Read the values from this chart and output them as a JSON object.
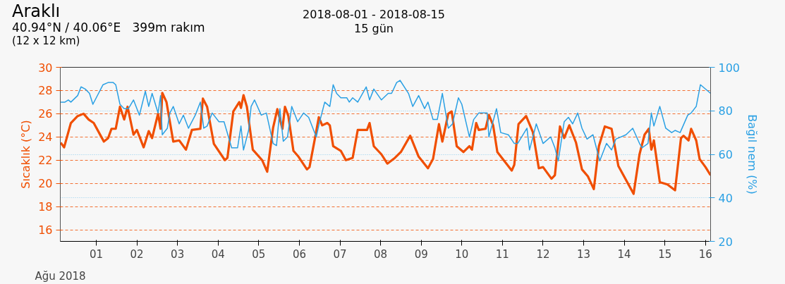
{
  "chart_data": {
    "type": "line",
    "title": "Araklı",
    "subtitle": "40.94°N / 40.06°E   399m rakım",
    "annotations": [
      "(12 x 12 km)",
      "2018-08-01 - 2018-08-15",
      "15 gün"
    ],
    "xlabel": "Ağu 2018",
    "ylabel": "Sıcaklık (°C)",
    "y2label": "Bağıl nem (%)",
    "xlim": [
      "2018-07-31T02:45",
      "2018-08-16T03:00"
    ],
    "xticks": [
      {
        "value": "2018-08-01",
        "label": "01"
      },
      {
        "value": "2018-08-02",
        "label": "02"
      },
      {
        "value": "2018-08-03",
        "label": "03"
      },
      {
        "value": "2018-08-04",
        "label": "04"
      },
      {
        "value": "2018-08-05",
        "label": "05"
      },
      {
        "value": "2018-08-06",
        "label": "06"
      },
      {
        "value": "2018-08-07",
        "label": "07"
      },
      {
        "value": "2018-08-08",
        "label": "08"
      },
      {
        "value": "2018-08-09",
        "label": "09"
      },
      {
        "value": "2018-08-10",
        "label": "10"
      },
      {
        "value": "2018-08-11",
        "label": "11"
      },
      {
        "value": "2018-08-12",
        "label": "12"
      },
      {
        "value": "2018-08-13",
        "label": "13"
      },
      {
        "value": "2018-08-14",
        "label": "14"
      },
      {
        "value": "2018-08-15",
        "label": "15"
      },
      {
        "value": "2018-08-16",
        "label": "16"
      }
    ],
    "ylim": [
      15,
      30
    ],
    "yticks": [
      16,
      18,
      20,
      22,
      24,
      26,
      28,
      30
    ],
    "y2lim": [
      20,
      100
    ],
    "y2ticks": [
      20,
      40,
      60,
      80,
      100
    ],
    "grid": "y",
    "marker": "none",
    "line_style": "solid",
    "series": [
      {
        "color": "#f04e00",
        "axis": "y",
        "x": [
          "2018-07-31T03:00",
          "2018-07-31T05:00",
          "2018-07-31T09:00",
          "2018-07-31T13:00",
          "2018-07-31T16:30",
          "2018-07-31T19:30",
          "2018-07-31T22:30",
          "2018-08-01T04:30",
          "2018-08-01T07:00",
          "2018-08-01T09:00",
          "2018-08-01T11:30",
          "2018-08-01T14:00",
          "2018-08-01T16:30",
          "2018-08-01T18:30",
          "2018-08-01T22:00",
          "2018-08-02T00:00",
          "2018-08-02T04:00",
          "2018-08-02T07:00",
          "2018-08-02T09:00",
          "2018-08-02T12:30",
          "2018-08-02T14:00",
          "2018-08-02T15:00",
          "2018-08-02T17:30",
          "2018-08-02T21:30",
          "2018-08-03T01:00",
          "2018-08-03T05:00",
          "2018-08-03T08:30",
          "2018-08-03T13:30",
          "2018-08-03T15:00",
          "2018-08-03T17:30",
          "2018-08-03T21:30",
          "2018-08-04T04:00",
          "2018-08-04T05:30",
          "2018-08-04T09:00",
          "2018-08-04T12:30",
          "2018-08-04T13:30",
          "2018-08-04T15:00",
          "2018-08-04T17:00",
          "2018-08-04T20:30",
          "2018-08-05T02:00",
          "2018-08-05T05:00",
          "2018-08-05T08:30",
          "2018-08-05T11:00",
          "2018-08-05T14:00",
          "2018-08-05T15:30",
          "2018-08-05T17:30",
          "2018-08-05T20:30",
          "2018-08-05T23:30",
          "2018-08-06T04:30",
          "2018-08-06T06:00",
          "2018-08-06T09:30",
          "2018-08-06T11:30",
          "2018-08-06T13:30",
          "2018-08-06T16:30",
          "2018-08-06T18:00",
          "2018-08-06T20:00",
          "2018-08-07T00:30",
          "2018-08-07T03:30",
          "2018-08-07T07:30",
          "2018-08-07T10:30",
          "2018-08-07T16:00",
          "2018-08-07T17:30",
          "2018-08-07T20:00",
          "2018-08-08T00:30",
          "2018-08-08T04:00",
          "2018-08-08T08:30",
          "2018-08-08T12:00",
          "2018-08-08T17:30",
          "2018-08-08T22:30",
          "2018-08-09T04:00",
          "2018-08-09T07:00",
          "2018-08-09T10:30",
          "2018-08-09T12:30",
          "2018-08-09T16:00",
          "2018-08-09T18:00",
          "2018-08-09T21:00",
          "2018-08-10T01:00",
          "2018-08-10T04:30",
          "2018-08-10T06:00",
          "2018-08-10T08:30",
          "2018-08-10T10:00",
          "2018-08-10T14:00",
          "2018-08-10T16:00",
          "2018-08-10T18:30",
          "2018-08-10T21:00",
          "2018-08-11T05:30",
          "2018-08-11T07:00",
          "2018-08-11T09:30",
          "2018-08-11T14:00",
          "2018-08-11T18:00",
          "2018-08-11T21:30",
          "2018-08-12T00:00",
          "2018-08-12T05:00",
          "2018-08-12T07:00",
          "2018-08-12T10:00",
          "2018-08-12T12:30",
          "2018-08-12T15:30",
          "2018-08-12T19:30",
          "2018-08-12T23:00",
          "2018-08-13T02:30",
          "2018-08-13T06:00",
          "2018-08-13T09:00",
          "2018-08-13T12:30",
          "2018-08-13T16:30",
          "2018-08-13T20:30",
          "2018-08-14T05:30",
          "2018-08-14T09:00",
          "2018-08-14T12:00",
          "2018-08-14T14:30",
          "2018-08-14T16:00",
          "2018-08-14T17:30",
          "2018-08-14T21:00",
          "2018-08-15T01:30",
          "2018-08-15T06:00",
          "2018-08-15T09:30",
          "2018-08-15T11:00",
          "2018-08-15T14:00",
          "2018-08-15T15:30",
          "2018-08-15T18:30",
          "2018-08-15T20:30",
          "2018-08-16T00:00",
          "2018-08-16T03:00"
        ],
        "values": [
          23.5,
          23.1,
          25.2,
          25.8,
          26.0,
          25.5,
          25.2,
          23.6,
          23.9,
          24.7,
          24.7,
          26.6,
          25.5,
          26.6,
          24.2,
          24.6,
          23.1,
          24.5,
          23.9,
          26.0,
          24.7,
          27.8,
          27.0,
          23.6,
          23.7,
          22.9,
          24.6,
          24.7,
          27.3,
          26.6,
          23.4,
          22.0,
          22.2,
          26.2,
          27.0,
          26.5,
          27.6,
          26.6,
          22.9,
          22.0,
          21.0,
          24.8,
          26.4,
          24.7,
          26.6,
          25.8,
          22.8,
          22.3,
          21.2,
          21.4,
          24.1,
          25.7,
          25.0,
          25.2,
          25.0,
          23.2,
          22.8,
          22.0,
          22.2,
          24.6,
          24.6,
          25.2,
          23.2,
          22.5,
          21.7,
          22.2,
          22.7,
          24.1,
          22.3,
          21.3,
          22.1,
          25.1,
          23.6,
          26.0,
          26.2,
          23.2,
          22.7,
          23.2,
          22.9,
          25.2,
          24.6,
          24.7,
          25.9,
          25.0,
          22.7,
          21.1,
          21.6,
          25.1,
          25.8,
          24.4,
          21.3,
          21.4,
          20.4,
          20.7,
          24.9,
          23.9,
          25.0,
          23.5,
          21.2,
          20.6,
          19.5,
          23.2,
          24.9,
          24.7,
          21.5,
          19.1,
          22.5,
          24.2,
          24.7,
          22.9,
          23.7,
          20.1,
          19.9,
          19.4,
          23.9,
          24.1,
          23.7,
          24.7,
          23.7,
          22.1,
          21.4,
          20.7
        ]
      },
      {
        "color": "#2aa0e4",
        "axis": "y2",
        "x": [
          "2018-07-31T03:00",
          "2018-07-31T05:30",
          "2018-07-31T07:30",
          "2018-07-31T09:00",
          "2018-07-31T13:00",
          "2018-07-31T15:00",
          "2018-07-31T17:30",
          "2018-07-31T20:00",
          "2018-07-31T22:00",
          "2018-08-01T04:00",
          "2018-08-01T07:00",
          "2018-08-01T10:00",
          "2018-08-01T11:30",
          "2018-08-01T14:00",
          "2018-08-01T16:30",
          "2018-08-01T19:00",
          "2018-08-01T22:00",
          "2018-08-02T01:30",
          "2018-08-02T05:00",
          "2018-08-02T07:00",
          "2018-08-02T09:00",
          "2018-08-02T12:30",
          "2018-08-02T14:00",
          "2018-08-02T15:00",
          "2018-08-02T18:00",
          "2018-08-02T19:30",
          "2018-08-02T21:30",
          "2018-08-03T01:00",
          "2018-08-03T03:30",
          "2018-08-03T06:30",
          "2018-08-03T10:30",
          "2018-08-03T13:30",
          "2018-08-03T15:30",
          "2018-08-03T17:30",
          "2018-08-03T20:30",
          "2018-08-04T00:30",
          "2018-08-04T03:30",
          "2018-08-04T08:00",
          "2018-08-04T11:30",
          "2018-08-04T13:30",
          "2018-08-04T15:00",
          "2018-08-04T18:00",
          "2018-08-04T19:30",
          "2018-08-04T21:30",
          "2018-08-05T01:30",
          "2018-08-05T04:30",
          "2018-08-05T08:30",
          "2018-08-05T10:30",
          "2018-08-05T12:30",
          "2018-08-05T14:30",
          "2018-08-05T17:00",
          "2018-08-05T19:30",
          "2018-08-05T23:00",
          "2018-08-06T02:30",
          "2018-08-06T05:30",
          "2018-08-06T10:00",
          "2018-08-06T12:00",
          "2018-08-06T15:00",
          "2018-08-06T18:00",
          "2018-08-06T20:00",
          "2018-08-06T22:00",
          "2018-08-07T00:30",
          "2018-08-07T04:00",
          "2018-08-07T05:30",
          "2018-08-07T07:30",
          "2018-08-07T10:30",
          "2018-08-07T15:30",
          "2018-08-07T17:30",
          "2018-08-07T20:00",
          "2018-08-08T00:30",
          "2018-08-08T04:30",
          "2018-08-08T06:30",
          "2018-08-08T09:30",
          "2018-08-08T11:30",
          "2018-08-08T16:30",
          "2018-08-08T19:00",
          "2018-08-08T22:30",
          "2018-08-09T02:00",
          "2018-08-09T04:00",
          "2018-08-09T07:00",
          "2018-08-09T09:30",
          "2018-08-09T12:30",
          "2018-08-09T16:00",
          "2018-08-09T18:30",
          "2018-08-09T22:00",
          "2018-08-10T00:00",
          "2018-08-10T04:30",
          "2018-08-10T07:00",
          "2018-08-10T10:00",
          "2018-08-10T15:00",
          "2018-08-10T16:00",
          "2018-08-10T20:30",
          "2018-08-10T23:00",
          "2018-08-11T03:30",
          "2018-08-11T07:00",
          "2018-08-11T09:00",
          "2018-08-11T14:30",
          "2018-08-11T16:00",
          "2018-08-11T20:00",
          "2018-08-12T00:00",
          "2018-08-12T04:30",
          "2018-08-12T07:00",
          "2018-08-12T09:00",
          "2018-08-12T12:30",
          "2018-08-12T15:00",
          "2018-08-12T17:30",
          "2018-08-12T20:30",
          "2018-08-12T23:00",
          "2018-08-13T02:00",
          "2018-08-13T05:30",
          "2018-08-13T09:30",
          "2018-08-13T13:30",
          "2018-08-13T16:30",
          "2018-08-13T19:00",
          "2018-08-14T01:00",
          "2018-08-14T05:00",
          "2018-08-14T09:00",
          "2018-08-14T10:30",
          "2018-08-14T14:00",
          "2018-08-14T16:00",
          "2018-08-14T17:30",
          "2018-08-14T21:00",
          "2018-08-15T00:30",
          "2018-08-15T04:00",
          "2018-08-15T06:00",
          "2018-08-15T09:00",
          "2018-08-15T13:30",
          "2018-08-15T15:30",
          "2018-08-15T18:30",
          "2018-08-15T21:00",
          "2018-08-15T22:30",
          "2018-08-16T03:00"
        ],
        "values": [
          84,
          84,
          85,
          84,
          87,
          91,
          90,
          88,
          83,
          92,
          93,
          93,
          92,
          83,
          81,
          81,
          85,
          78,
          89,
          82,
          88,
          79,
          87,
          69,
          72,
          79,
          82,
          74,
          78,
          72,
          78,
          84,
          72,
          73,
          79,
          75,
          75,
          63,
          63,
          73,
          62,
          71,
          82,
          85,
          78,
          79,
          65,
          64,
          81,
          66,
          68,
          82,
          75,
          79,
          77,
          68,
          75,
          84,
          82,
          92,
          88,
          86,
          86,
          84,
          86,
          84,
          91,
          85,
          90,
          85,
          88,
          88,
          93,
          94,
          88,
          82,
          87,
          81,
          84,
          76,
          76,
          88,
          72,
          74,
          86,
          83,
          68,
          76,
          79,
          79,
          68,
          81,
          70,
          69,
          65,
          65,
          72,
          62,
          74,
          65,
          68,
          63,
          57,
          75,
          77,
          74,
          79,
          72,
          67,
          69,
          57,
          65,
          62,
          67,
          69,
          72,
          65,
          63,
          65,
          79,
          73,
          82,
          72,
          70,
          71,
          70,
          78,
          79,
          82,
          92,
          91,
          88
        ]
      }
    ]
  }
}
